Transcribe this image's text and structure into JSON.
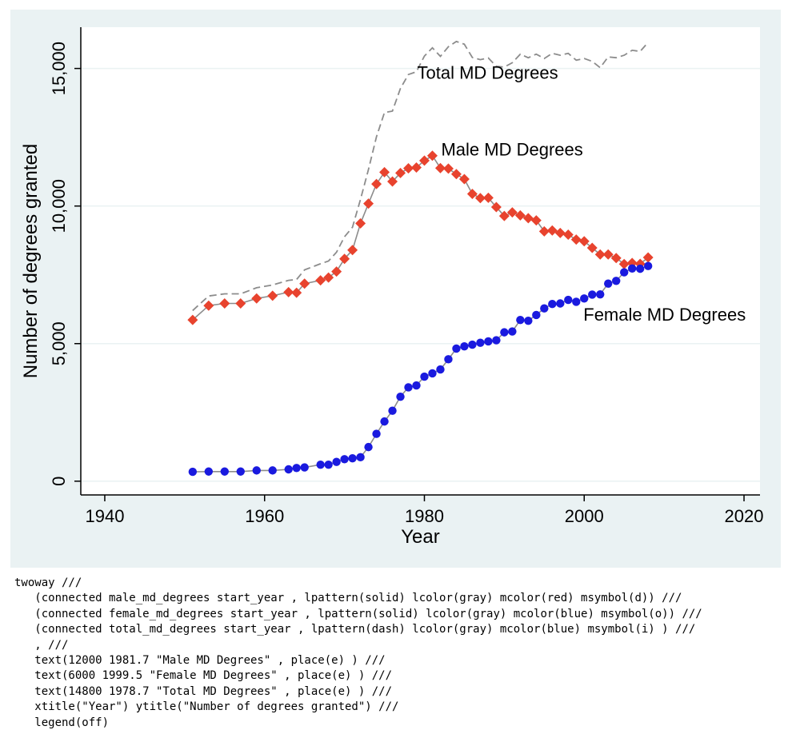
{
  "colors": {
    "outer_background": "#eaf2f3",
    "plot_background": "#ffffff",
    "gridline": "#eaf2f3",
    "axis": "#000000",
    "connector": "#8c8c8c",
    "male_marker": "#e8432e",
    "female_marker": "#1a1adf",
    "total_line": "#8c8c8c"
  },
  "chart_data": {
    "type": "line",
    "title": "",
    "xlabel": "Year",
    "ylabel": "Number of degrees granted",
    "xlim": [
      1937,
      2022
    ],
    "ylim": [
      -500,
      16500
    ],
    "xticks": [
      1940,
      1960,
      1980,
      2000,
      2020
    ],
    "yticks": [
      0,
      5000,
      10000,
      15000
    ],
    "ytick_labels": [
      "0",
      "5,000",
      "10,000",
      "15,000"
    ],
    "grid": true,
    "legend": "off",
    "x": [
      1951,
      1953,
      1955,
      1957,
      1959,
      1961,
      1963,
      1964,
      1965,
      1967,
      1968,
      1969,
      1970,
      1971,
      1972,
      1973,
      1974,
      1975,
      1976,
      1977,
      1978,
      1979,
      1980,
      1981,
      1982,
      1983,
      1984,
      1985,
      1986,
      1987,
      1988,
      1989,
      1990,
      1991,
      1992,
      1993,
      1994,
      1995,
      1996,
      1997,
      1998,
      1999,
      2000,
      2001,
      2002,
      2003,
      2004,
      2005,
      2006,
      2007,
      2008
    ],
    "series": [
      {
        "name": "Male MD Degrees",
        "style": "solid-connected",
        "marker": "diamond",
        "values": [
          5860,
          6380,
          6460,
          6460,
          6640,
          6740,
          6870,
          6850,
          7180,
          7300,
          7400,
          7620,
          8080,
          8400,
          9370,
          10090,
          10800,
          11230,
          10890,
          11200,
          11370,
          11400,
          11650,
          11830,
          11380,
          11360,
          11160,
          10980,
          10440,
          10290,
          10300,
          9960,
          9640,
          9770,
          9660,
          9560,
          9480,
          9080,
          9110,
          9020,
          8960,
          8780,
          8720,
          8480,
          8240,
          8240,
          8110,
          7890,
          7930,
          7900,
          8130
        ]
      },
      {
        "name": "Female MD Degrees",
        "style": "solid-connected",
        "marker": "circle",
        "values": [
          340,
          350,
          350,
          350,
          390,
          390,
          430,
          480,
          500,
          600,
          600,
          700,
          800,
          830,
          870,
          1240,
          1720,
          2170,
          2560,
          3070,
          3410,
          3480,
          3800,
          3920,
          4060,
          4430,
          4820,
          4900,
          4960,
          5030,
          5080,
          5120,
          5410,
          5440,
          5860,
          5830,
          6040,
          6280,
          6440,
          6460,
          6590,
          6520,
          6640,
          6780,
          6790,
          7180,
          7280,
          7590,
          7730,
          7720,
          7820
        ]
      },
      {
        "name": "Total MD Degrees",
        "style": "dash",
        "marker": "none",
        "values": [
          6200,
          6730,
          6810,
          6810,
          7030,
          7130,
          7300,
          7330,
          7680,
          7900,
          8000,
          8320,
          8880,
          9230,
          10240,
          11330,
          12520,
          13400,
          13450,
          14270,
          14780,
          14880,
          15450,
          15750,
          15440,
          15790,
          15980,
          15880,
          15400,
          15320,
          15380,
          15080,
          15050,
          15210,
          15520,
          15390,
          15520,
          15360,
          15550,
          15480,
          15550,
          15300,
          15360,
          15260,
          15030,
          15420,
          15390,
          15480,
          15660,
          15620,
          15950
        ]
      }
    ],
    "annotations": [
      {
        "text": "Male MD Degrees",
        "x": 1981.7,
        "y": 12000,
        "place": "e"
      },
      {
        "text": "Female MD Degrees",
        "x": 1999.5,
        "y": 6000,
        "place": "e"
      },
      {
        "text": "Total MD Degrees",
        "x": 1978.7,
        "y": 14800,
        "place": "e"
      }
    ]
  },
  "code": {
    "lines": [
      "twoway ///",
      "   (connected male_md_degrees start_year , lpattern(solid) lcolor(gray) mcolor(red) msymbol(d)) ///",
      "   (connected female_md_degrees start_year , lpattern(solid) lcolor(gray) mcolor(blue) msymbol(o)) ///",
      "   (connected total_md_degrees start_year , lpattern(dash) lcolor(gray) mcolor(blue) msymbol(i) ) ///",
      "   , ///",
      "   text(12000 1981.7 \"Male MD Degrees\" , place(e) ) ///",
      "   text(6000 1999.5 \"Female MD Degrees\" , place(e) ) ///",
      "   text(14800 1978.7 \"Total MD Degrees\" , place(e) ) ///",
      "   xtitle(\"Year\") ytitle(\"Number of degrees granted\") ///",
      "   legend(off)"
    ]
  }
}
